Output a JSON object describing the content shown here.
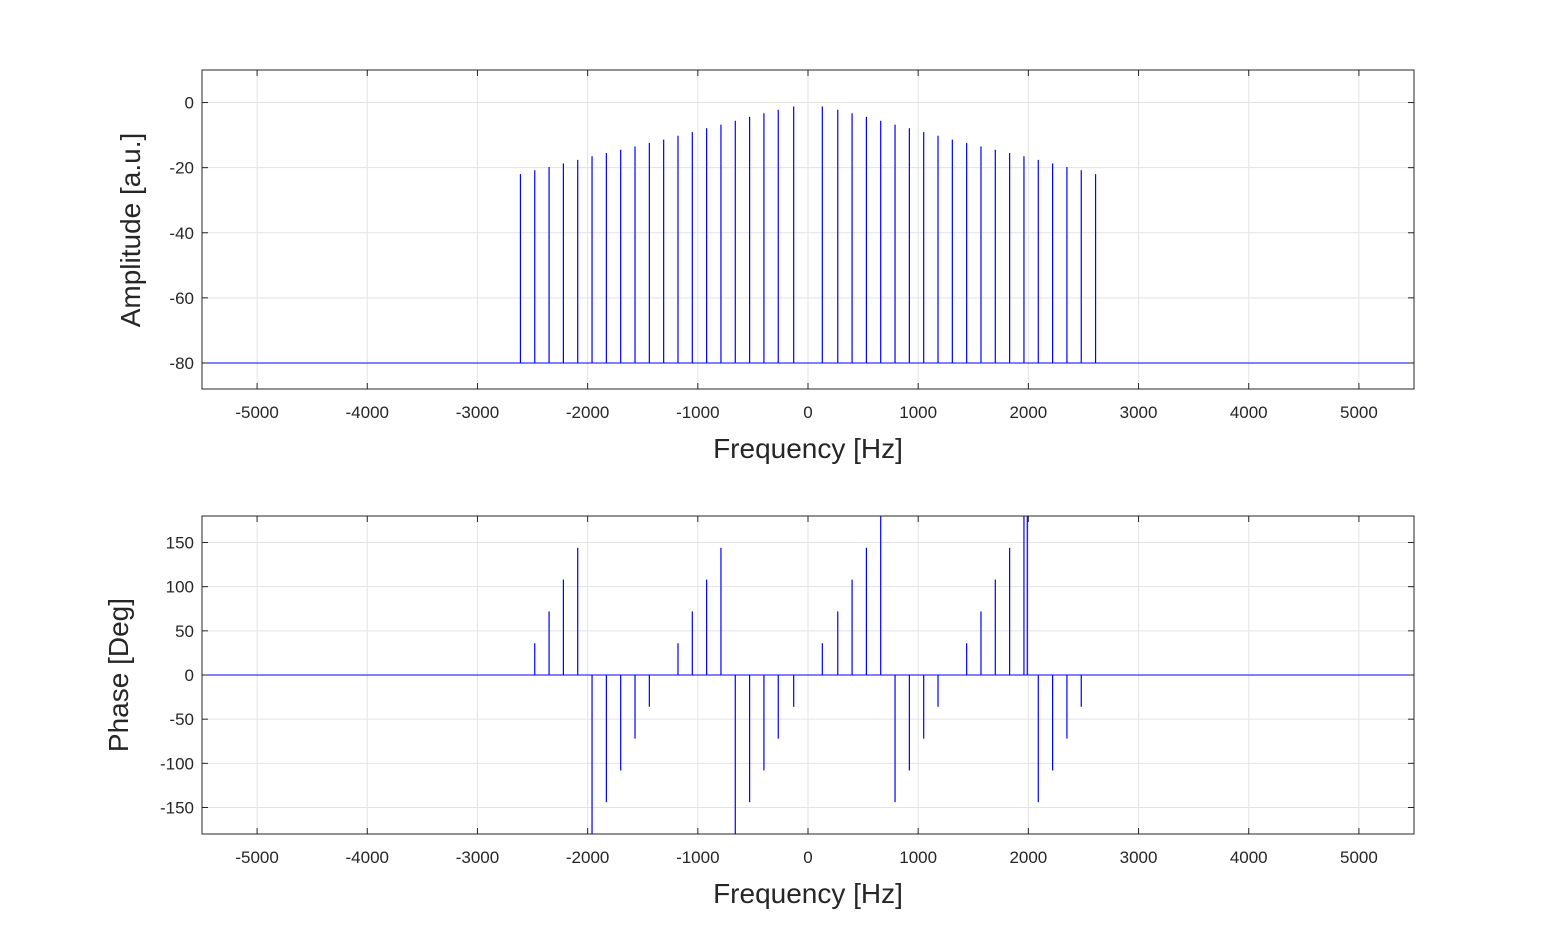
{
  "chart_data": [
    {
      "type": "stem",
      "xlabel": "Frequency [Hz]",
      "ylabel": "Amplitude [a.u.]",
      "xlim": [
        -5500,
        5500
      ],
      "ylim": [
        -88,
        10
      ],
      "xticks": [
        -5000,
        -4000,
        -3000,
        -2000,
        -1000,
        0,
        1000,
        2000,
        3000,
        4000,
        5000
      ],
      "yticks": [
        0,
        -20,
        -40,
        -60,
        -80
      ],
      "grid": true,
      "baseline": -80,
      "line_color": "#0000ff",
      "x": [
        -2610,
        -2480,
        -2350,
        -2220,
        -2090,
        -1960,
        -1830,
        -1700,
        -1570,
        -1440,
        -1310,
        -1180,
        -1050,
        -920,
        -790,
        -660,
        -530,
        -400,
        -270,
        -130,
        130,
        270,
        400,
        530,
        660,
        790,
        920,
        1050,
        1180,
        1310,
        1440,
        1570,
        1700,
        1830,
        1960,
        2090,
        2220,
        2350,
        2480,
        2610
      ],
      "values": [
        -22,
        -20.8,
        -19.8,
        -18.7,
        -17.6,
        -16.5,
        -15.5,
        -14.5,
        -13.5,
        -12.4,
        -11.4,
        -10.2,
        -9.1,
        -7.9,
        -6.8,
        -5.6,
        -4.4,
        -3.3,
        -2.2,
        -1.2,
        -1.2,
        -2.2,
        -3.3,
        -4.4,
        -5.6,
        -6.8,
        -7.9,
        -9.1,
        -10.2,
        -11.4,
        -12.4,
        -13.5,
        -14.5,
        -15.5,
        -16.5,
        -17.6,
        -18.7,
        -19.8,
        -20.8,
        -22
      ]
    },
    {
      "type": "stem",
      "xlabel": "Frequency [Hz]",
      "ylabel": "Phase [Deg]",
      "xlim": [
        -5500,
        5500
      ],
      "ylim": [
        -180,
        180
      ],
      "xticks": [
        -5000,
        -4000,
        -3000,
        -2000,
        -1000,
        0,
        1000,
        2000,
        3000,
        4000,
        5000
      ],
      "yticks": [
        150,
        100,
        50,
        0,
        -50,
        -100,
        -150
      ],
      "grid": true,
      "baseline": 0,
      "line_color": "#0000ff",
      "x": [
        -2480,
        -2350,
        -2220,
        -2090,
        -1960,
        -1830,
        -1700,
        -1570,
        -1440,
        -1180,
        -1050,
        -920,
        -790,
        -660,
        -530,
        -400,
        -270,
        -130,
        130,
        270,
        400,
        530,
        660,
        790,
        920,
        1050,
        1180,
        1440,
        1570,
        1700,
        1830,
        1960,
        1990,
        2090,
        2220,
        2350,
        2480
      ],
      "values": [
        36,
        72,
        108,
        144,
        -180,
        -144,
        -108,
        -72,
        -36,
        36,
        72,
        108,
        144,
        -180,
        -144,
        -108,
        -72,
        -36,
        36,
        72,
        108,
        144,
        180,
        -144,
        -108,
        -72,
        -36,
        36,
        72,
        108,
        144,
        180,
        180,
        -144,
        -108,
        -72,
        -36
      ]
    }
  ]
}
